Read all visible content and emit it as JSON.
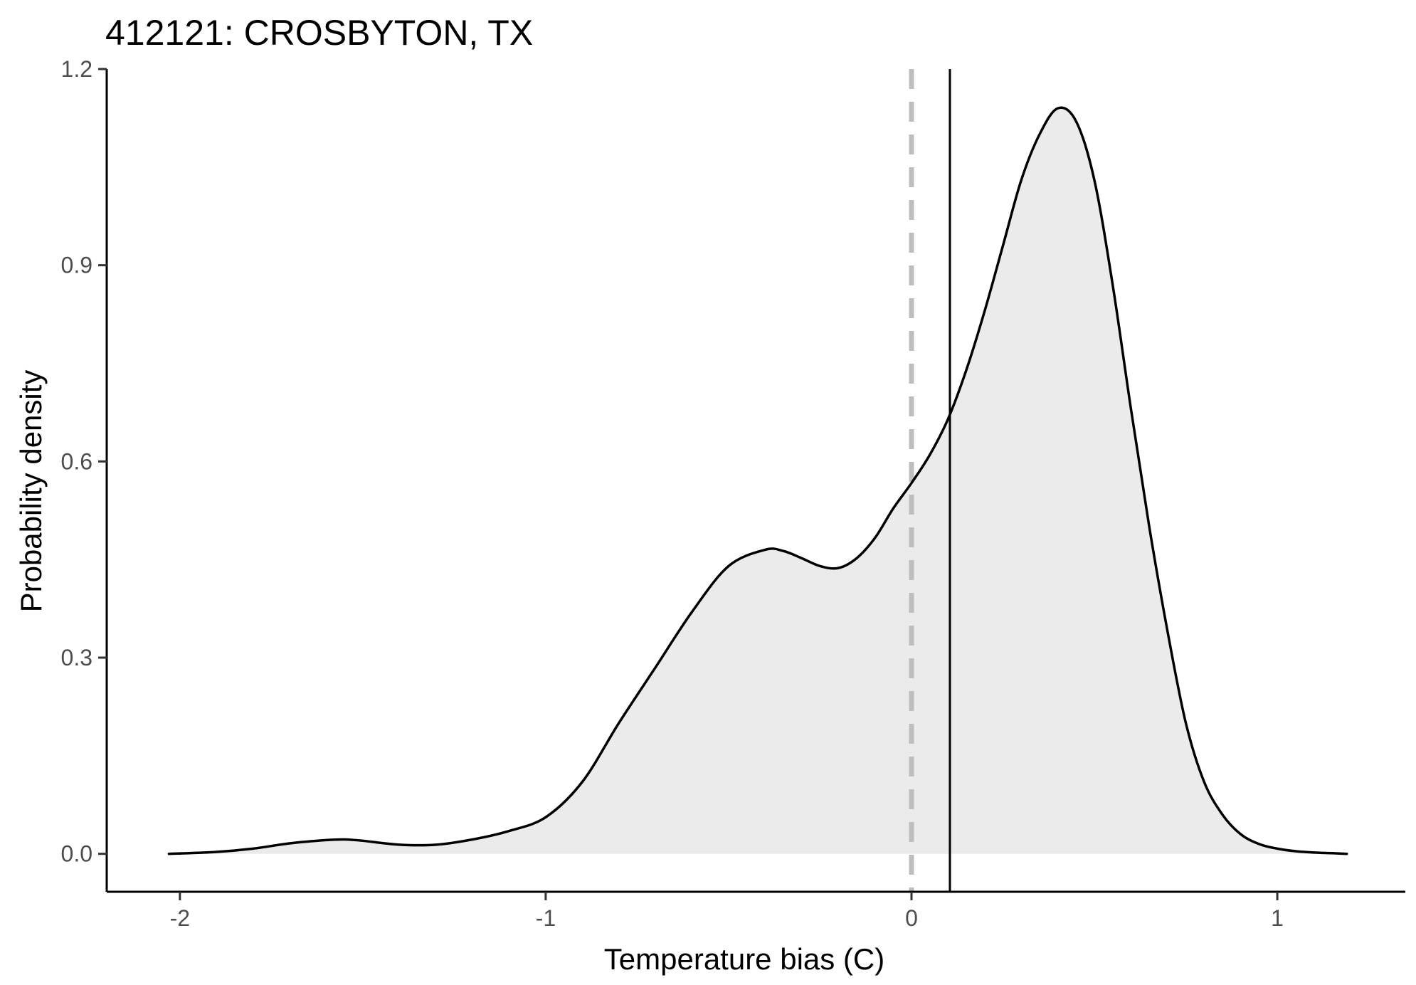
{
  "chart_data": {
    "type": "area",
    "title": "412121: CROSBYTON, TX",
    "xlabel": "Temperature bias (C)",
    "ylabel": "Probability density",
    "xlim": [
      -2.2,
      1.35
    ],
    "ylim": [
      -0.058,
      1.2
    ],
    "x_ticks": [
      -2,
      -1,
      0,
      1
    ],
    "x_tick_labels": [
      "-2",
      "-1",
      "0",
      "1"
    ],
    "y_ticks": [
      0.0,
      0.3,
      0.6,
      0.9,
      1.2
    ],
    "y_tick_labels": [
      "0.0",
      "0.3",
      "0.6",
      "0.9",
      "1.2"
    ],
    "grid": false,
    "legend": "none",
    "series": [
      {
        "x": [
          -2.03,
          -1.9,
          -1.8,
          -1.7,
          -1.6,
          -1.55,
          -1.5,
          -1.4,
          -1.3,
          -1.2,
          -1.1,
          -1.0,
          -0.9,
          -0.8,
          -0.7,
          -0.6,
          -0.5,
          -0.4,
          -0.35,
          -0.3,
          -0.25,
          -0.2,
          -0.15,
          -0.1,
          -0.05,
          0.0,
          0.05,
          0.1,
          0.15,
          0.2,
          0.25,
          0.3,
          0.35,
          0.4,
          0.45,
          0.5,
          0.55,
          0.6,
          0.65,
          0.7,
          0.75,
          0.8,
          0.85,
          0.9,
          0.95,
          1.0,
          1.05,
          1.1,
          1.15,
          1.19
        ],
        "y": [
          0.0,
          0.003,
          0.008,
          0.016,
          0.021,
          0.022,
          0.02,
          0.014,
          0.014,
          0.022,
          0.035,
          0.056,
          0.11,
          0.2,
          0.285,
          0.37,
          0.44,
          0.465,
          0.463,
          0.452,
          0.44,
          0.437,
          0.452,
          0.483,
          0.528,
          0.567,
          0.61,
          0.665,
          0.74,
          0.83,
          0.93,
          1.03,
          1.1,
          1.14,
          1.12,
          1.03,
          0.87,
          0.68,
          0.5,
          0.34,
          0.2,
          0.11,
          0.06,
          0.03,
          0.015,
          0.008,
          0.004,
          0.002,
          0.001,
          0.0
        ]
      }
    ],
    "fill_color": "#ebebeb",
    "line_color": "#000000",
    "reference_lines": [
      {
        "x": 0,
        "style": "dashed",
        "color": "#bebebe"
      },
      {
        "x": 0.105,
        "style": "solid",
        "color": "#000000"
      }
    ]
  }
}
